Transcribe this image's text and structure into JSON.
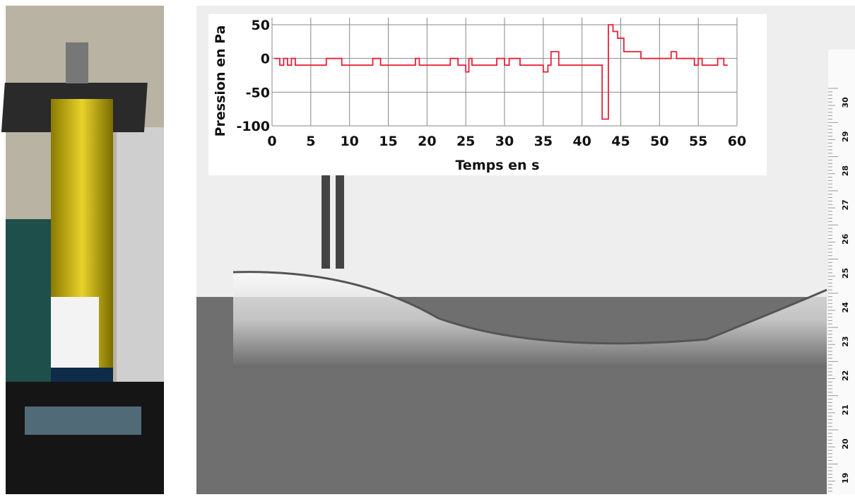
{
  "chart_data": {
    "type": "line",
    "xlabel": "Temps en s",
    "ylabel": "Pression en Pa",
    "xlim": [
      0,
      60
    ],
    "ylim": [
      -100,
      50
    ],
    "xticks": [
      0,
      5,
      10,
      15,
      20,
      25,
      30,
      35,
      40,
      45,
      50,
      55,
      60
    ],
    "yticks": [
      -100,
      -50,
      0,
      50
    ],
    "grid": true,
    "series": [
      {
        "color": "#e8203a",
        "x": [
          0.3,
          1,
          1,
          1.5,
          1.5,
          2,
          2,
          2.5,
          2.5,
          3,
          3,
          7,
          7,
          9,
          9,
          13,
          13,
          14,
          14,
          18.5,
          18.5,
          19,
          19,
          23,
          23,
          24,
          24,
          25,
          25,
          25.4,
          25.4,
          25.8,
          25.8,
          29,
          29,
          30,
          30,
          30.6,
          30.6,
          32,
          32,
          35,
          35,
          35.6,
          35.6,
          36,
          36,
          37,
          37,
          42.6,
          42.6,
          43.4,
          43.4,
          44,
          44,
          44.6,
          44.6,
          45.4,
          45.4,
          47.6,
          47.6,
          51.5,
          51.5,
          52.2,
          52.2,
          54.5,
          54.5,
          55,
          55,
          55.5,
          55.5,
          57.5,
          57.5,
          58.3,
          58.3,
          58.8
        ],
        "values": [
          0,
          0,
          -10,
          -10,
          0,
          0,
          -10,
          -10,
          0,
          0,
          -10,
          -10,
          0,
          0,
          -10,
          -10,
          0,
          0,
          -10,
          -10,
          0,
          0,
          -10,
          -10,
          0,
          0,
          -10,
          -10,
          -20,
          -20,
          0,
          0,
          -10,
          -10,
          0,
          0,
          -10,
          -10,
          0,
          0,
          -10,
          -10,
          -20,
          -20,
          -10,
          -10,
          10,
          10,
          -10,
          -10,
          -90,
          -90,
          50,
          50,
          40,
          40,
          30,
          30,
          10,
          10,
          0,
          0,
          10,
          10,
          0,
          0,
          -10,
          -10,
          0,
          0,
          -10,
          -10,
          0,
          0,
          -10,
          -10
        ]
      }
    ]
  },
  "ruler_labels": [
    "30",
    "29",
    "28",
    "27",
    "26",
    "25",
    "24",
    "23",
    "22",
    "21",
    "20",
    "19"
  ]
}
